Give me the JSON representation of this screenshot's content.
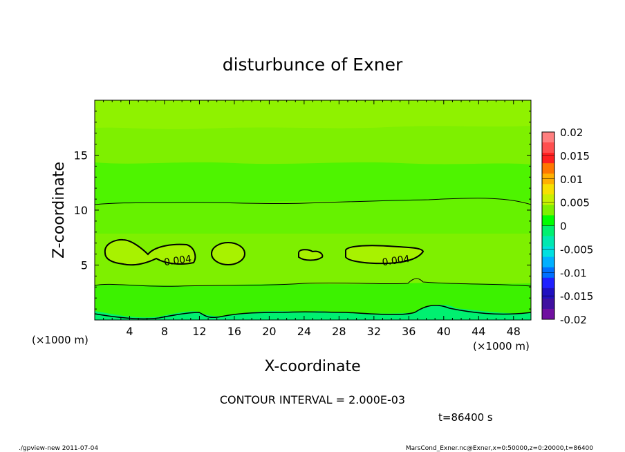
{
  "chart_data": {
    "type": "heatmap",
    "title": "disturbunce of Exner",
    "xlabel": "X-coordinate",
    "ylabel": "Z-coordinate",
    "x_units_left": "(×1000 m)",
    "x_units_right": "(×1000 m)",
    "xlim": [
      0,
      50
    ],
    "ylim": [
      0,
      20
    ],
    "x_ticks": [
      4,
      8,
      12,
      16,
      20,
      24,
      28,
      32,
      36,
      40,
      44,
      48
    ],
    "y_ticks": [
      5,
      10,
      15
    ],
    "colorbar": {
      "ticks": [
        "0.02",
        "0.015",
        "0.01",
        "0.005",
        "0",
        "-0.005",
        "-0.01",
        "-0.015",
        "-0.02"
      ],
      "colors": [
        "#ff7f7f",
        "#ff4f4f",
        "#ff2020",
        "#ff7700",
        "#ffb000",
        "#f7e000",
        "#c8f000",
        "#7ef000",
        "#00fe00",
        "#00f070",
        "#00e8b0",
        "#00e0e0",
        "#00b0ff",
        "#0070ff",
        "#2020ff",
        "#2010c0",
        "#4010a0",
        "#7010a0"
      ]
    },
    "contour_labels": [
      {
        "text": "0.004",
        "x": 9.5,
        "z": 5.5
      },
      {
        "text": "0.004",
        "x": 34.5,
        "z": 5.5
      }
    ],
    "contour_interval": "CONTOUR INTERVAL = 2.000E-03",
    "time": "t=86400 s"
  },
  "footer": {
    "left": "./gpview-new  2011-07-04",
    "right": "MarsCond_Exner.nc@Exner,x=0:50000,z=0:20000,t=86400"
  }
}
